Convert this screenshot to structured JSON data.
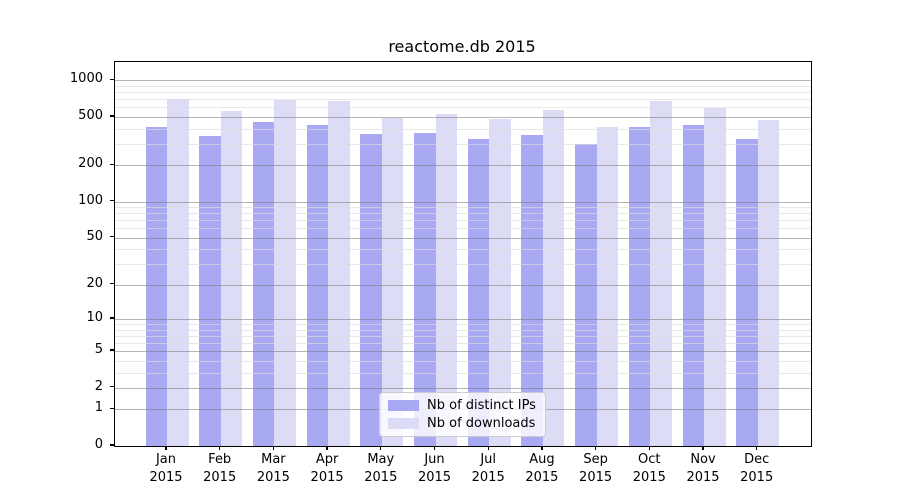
{
  "chart": {
    "title": "reactome.db 2015",
    "legend": {
      "items": [
        {
          "label": "Nb of distinct IPs",
          "color": "#a9a9f3"
        },
        {
          "label": "Nb of downloads",
          "color": "#dcdcf7"
        }
      ]
    },
    "chart_data": {
      "type": "bar",
      "title": "reactome.db 2015",
      "categories": [
        "Jan 2015",
        "Feb 2015",
        "Mar 2015",
        "Apr 2015",
        "May 2015",
        "Jun 2015",
        "Jul 2015",
        "Aug 2015",
        "Sep 2015",
        "Oct 2015",
        "Nov 2015",
        "Dec 2015"
      ],
      "series": [
        {
          "name": "Nb of distinct IPs",
          "color": "#a9a9f3",
          "values": [
            415,
            350,
            455,
            430,
            365,
            370,
            330,
            355,
            300,
            415,
            430,
            330
          ]
        },
        {
          "name": "Nb of downloads",
          "color": "#dcdcf7",
          "values": [
            705,
            560,
            695,
            670,
            490,
            530,
            480,
            565,
            415,
            675,
            595,
            475
          ]
        }
      ],
      "xlabel": "",
      "ylabel": "",
      "yscale": "log1p",
      "yticks": [
        0,
        1,
        2,
        5,
        10,
        20,
        50,
        100,
        200,
        500,
        1000
      ],
      "minor_yticks": [
        3,
        4,
        6,
        7,
        8,
        9,
        30,
        40,
        60,
        70,
        80,
        90,
        300,
        400,
        600,
        700,
        800,
        900
      ],
      "ylim": [
        0,
        1400
      ],
      "grid": true,
      "legend_position": "lower center"
    }
  }
}
